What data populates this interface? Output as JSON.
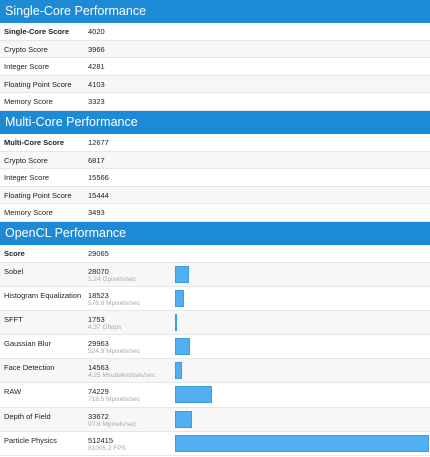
{
  "sections": [
    {
      "title": "Single-Core Performance",
      "rows": [
        {
          "label": "Single-Core Score",
          "score": 4020
        },
        {
          "label": "Crypto Score",
          "score": 3966
        },
        {
          "label": "Integer Score",
          "score": 4281
        },
        {
          "label": "Floating Point Score",
          "score": 4103
        },
        {
          "label": "Memory Score",
          "score": 3323
        }
      ]
    },
    {
      "title": "Multi-Core Performance",
      "rows": [
        {
          "label": "Multi-Core Score",
          "score": 12677
        },
        {
          "label": "Crypto Score",
          "score": 6817
        },
        {
          "label": "Integer Score",
          "score": 15566
        },
        {
          "label": "Floating Point Score",
          "score": 15444
        },
        {
          "label": "Memory Score",
          "score": 3493
        }
      ]
    },
    {
      "title": "OpenCL Performance",
      "rows": [
        {
          "label": "Score",
          "score": 29065
        },
        {
          "label": "Sobel",
          "score": 28070,
          "detail": "1.24 Gpixels/sec"
        },
        {
          "label": "Histogram Equalization",
          "score": 18523,
          "detail": "578.8 Mpixels/sec"
        },
        {
          "label": "SFFT",
          "score": 1753,
          "detail": "4.37 Gflops"
        },
        {
          "label": "Gaussian Blur",
          "score": 29963,
          "detail": "524.9 Mpixels/sec"
        },
        {
          "label": "Face Detection",
          "score": 14563,
          "detail": "4.25 Msubwindows/sec"
        },
        {
          "label": "RAW",
          "score": 74229,
          "detail": "718.5 Mpixels/sec"
        },
        {
          "label": "Depth of Field",
          "score": 33672,
          "detail": "97.8 Mpixels/sec"
        },
        {
          "label": "Particle Physics",
          "score": 512415,
          "detail": "81005.2 FPS"
        }
      ]
    }
  ]
}
